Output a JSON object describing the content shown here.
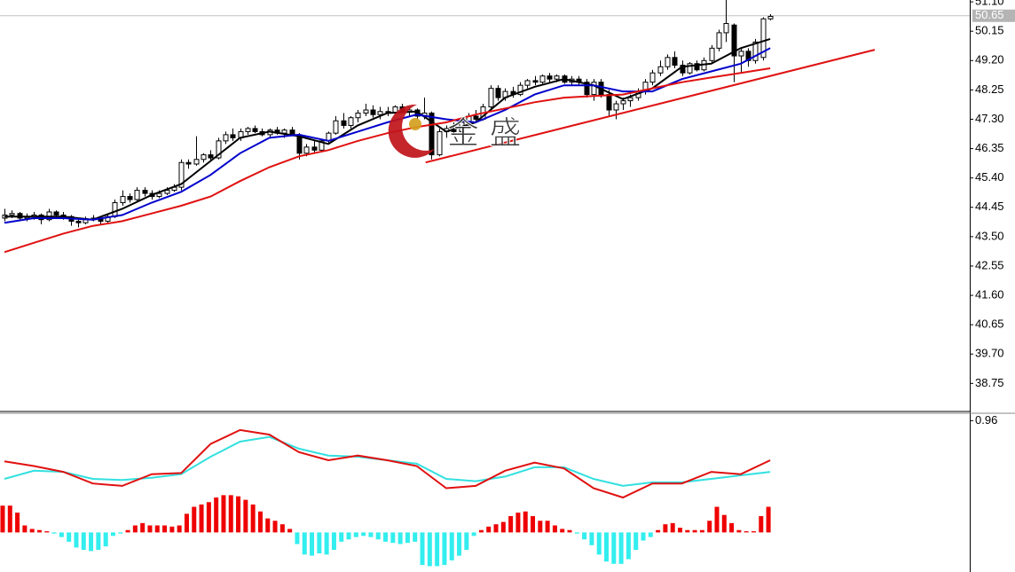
{
  "watermark": "金 盛",
  "chart_data": [
    {
      "type": "candlestick",
      "ohlc": [
        [
          44.1,
          44.4,
          44.0,
          44.2
        ],
        [
          44.2,
          44.35,
          44.1,
          44.25
        ],
        [
          44.25,
          44.3,
          44.0,
          44.1
        ],
        [
          44.1,
          44.25,
          44.0,
          44.15
        ],
        [
          44.15,
          44.3,
          44.05,
          44.2
        ],
        [
          44.2,
          44.25,
          43.9,
          44.05
        ],
        [
          44.05,
          44.4,
          44.0,
          44.3
        ],
        [
          44.3,
          44.35,
          44.1,
          44.2
        ],
        [
          44.2,
          44.3,
          44.05,
          44.15
        ],
        [
          44.15,
          44.2,
          43.85,
          44.0
        ],
        [
          44.0,
          44.1,
          43.8,
          43.95
        ],
        [
          43.95,
          44.15,
          43.9,
          44.05
        ],
        [
          44.05,
          44.2,
          44.0,
          44.1
        ],
        [
          44.1,
          44.15,
          43.9,
          44.0
        ],
        [
          44.0,
          44.25,
          43.95,
          44.15
        ],
        [
          44.15,
          44.7,
          44.1,
          44.6
        ],
        [
          44.6,
          45.0,
          44.5,
          44.8
        ],
        [
          44.8,
          44.9,
          44.6,
          44.7
        ],
        [
          44.7,
          45.1,
          44.65,
          45.0
        ],
        [
          45.0,
          45.1,
          44.8,
          44.9
        ],
        [
          44.9,
          45.0,
          44.7,
          44.8
        ],
        [
          44.8,
          45.0,
          44.75,
          44.9
        ],
        [
          44.9,
          45.1,
          44.85,
          45.0
        ],
        [
          45.0,
          45.2,
          44.95,
          45.1
        ],
        [
          45.1,
          46.0,
          45.0,
          45.9
        ],
        [
          45.9,
          46.0,
          45.7,
          45.85
        ],
        [
          45.85,
          46.75,
          45.8,
          46.0
        ],
        [
          46.0,
          46.2,
          45.9,
          46.15
        ],
        [
          46.15,
          46.3,
          45.95,
          46.05
        ],
        [
          46.05,
          46.7,
          46.0,
          46.6
        ],
        [
          46.6,
          46.9,
          46.5,
          46.8
        ],
        [
          46.8,
          47.0,
          46.6,
          46.7
        ],
        [
          46.7,
          47.0,
          46.6,
          46.9
        ],
        [
          46.9,
          47.05,
          46.8,
          47.0
        ],
        [
          47.0,
          47.1,
          46.85,
          46.9
        ],
        [
          46.9,
          47.0,
          46.75,
          46.8
        ],
        [
          46.8,
          47.0,
          46.7,
          46.95
        ],
        [
          46.95,
          47.05,
          46.8,
          46.85
        ],
        [
          46.85,
          47.0,
          46.7,
          46.95
        ],
        [
          46.95,
          47.05,
          46.75,
          46.8
        ],
        [
          46.8,
          46.85,
          46.0,
          46.2
        ],
        [
          46.2,
          46.5,
          46.1,
          46.4
        ],
        [
          46.4,
          46.6,
          46.2,
          46.3
        ],
        [
          46.3,
          46.65,
          46.25,
          46.6
        ],
        [
          46.6,
          46.9,
          46.5,
          46.85
        ],
        [
          46.85,
          47.4,
          46.8,
          47.25
        ],
        [
          47.25,
          47.5,
          47.0,
          47.1
        ],
        [
          47.1,
          47.4,
          47.0,
          47.35
        ],
        [
          47.35,
          47.6,
          47.2,
          47.5
        ],
        [
          47.5,
          47.8,
          47.4,
          47.6
        ],
        [
          47.6,
          47.75,
          47.35,
          47.45
        ],
        [
          47.45,
          47.7,
          47.3,
          47.55
        ],
        [
          47.55,
          47.7,
          47.4,
          47.5
        ],
        [
          47.5,
          47.75,
          47.45,
          47.7
        ],
        [
          47.7,
          47.8,
          47.5,
          47.55
        ],
        [
          47.55,
          47.7,
          47.4,
          47.6
        ],
        [
          47.6,
          47.65,
          47.3,
          47.4
        ],
        [
          47.4,
          48.0,
          47.3,
          47.5
        ],
        [
          47.5,
          47.55,
          46.0,
          46.15
        ],
        [
          46.15,
          47.0,
          46.1,
          46.9
        ],
        [
          46.9,
          47.1,
          46.7,
          47.0
        ],
        [
          47.0,
          47.2,
          46.8,
          46.9
        ],
        [
          46.9,
          47.3,
          46.85,
          47.2
        ],
        [
          47.2,
          47.5,
          47.0,
          47.4
        ],
        [
          47.4,
          47.6,
          47.2,
          47.3
        ],
        [
          47.3,
          47.8,
          47.25,
          47.7
        ],
        [
          47.7,
          48.4,
          47.6,
          48.3
        ],
        [
          48.3,
          48.4,
          47.9,
          48.0
        ],
        [
          48.0,
          48.3,
          47.9,
          48.2
        ],
        [
          48.2,
          48.35,
          48.0,
          48.1
        ],
        [
          48.1,
          48.5,
          48.05,
          48.4
        ],
        [
          48.4,
          48.6,
          48.3,
          48.55
        ],
        [
          48.55,
          48.7,
          48.4,
          48.5
        ],
        [
          48.5,
          48.75,
          48.45,
          48.7
        ],
        [
          48.7,
          48.8,
          48.5,
          48.6
        ],
        [
          48.6,
          48.75,
          48.5,
          48.7
        ],
        [
          48.7,
          48.75,
          48.45,
          48.5
        ],
        [
          48.5,
          48.7,
          48.4,
          48.6
        ],
        [
          48.6,
          48.7,
          48.4,
          48.5
        ],
        [
          48.5,
          48.6,
          48.0,
          48.1
        ],
        [
          48.1,
          48.6,
          47.9,
          48.5
        ],
        [
          48.5,
          48.6,
          48.0,
          48.1
        ],
        [
          48.1,
          48.25,
          47.4,
          47.6
        ],
        [
          47.6,
          47.9,
          47.3,
          47.8
        ],
        [
          47.8,
          48.0,
          47.6,
          47.9
        ],
        [
          47.9,
          48.1,
          47.7,
          48.0
        ],
        [
          48.0,
          48.3,
          47.9,
          48.2
        ],
        [
          48.2,
          48.6,
          48.1,
          48.5
        ],
        [
          48.5,
          48.9,
          48.4,
          48.8
        ],
        [
          48.8,
          49.2,
          48.7,
          49.0
        ],
        [
          49.0,
          49.4,
          48.9,
          49.3
        ],
        [
          49.3,
          49.5,
          48.95,
          49.05
        ],
        [
          49.05,
          49.2,
          48.7,
          48.8
        ],
        [
          48.8,
          49.15,
          48.75,
          49.1
        ],
        [
          49.1,
          49.2,
          48.85,
          48.9
        ],
        [
          48.9,
          49.3,
          48.85,
          49.2
        ],
        [
          49.2,
          49.7,
          49.1,
          49.6
        ],
        [
          49.6,
          50.2,
          49.5,
          50.1
        ],
        [
          50.1,
          51.16,
          49.8,
          50.4
        ],
        [
          50.35,
          50.4,
          48.5,
          49.35
        ],
        [
          49.35,
          49.6,
          48.8,
          49.5
        ],
        [
          49.5,
          49.6,
          49.0,
          49.2
        ],
        [
          49.2,
          49.9,
          49.1,
          49.8
        ],
        [
          49.3,
          50.6,
          49.2,
          50.55
        ],
        [
          50.55,
          50.7,
          50.5,
          50.63
        ]
      ],
      "up_color": "#ffffff",
      "down_color": "#000000",
      "series": [
        {
          "color": "#000000",
          "x": [
            0,
            4,
            8,
            12,
            16,
            20,
            24,
            28,
            32,
            36,
            40,
            44,
            48,
            52,
            56,
            60,
            64,
            68,
            72,
            76,
            80,
            84,
            88,
            92,
            96,
            100,
            104
          ],
          "values": [
            44.15,
            44.15,
            44.15,
            44.05,
            44.4,
            44.85,
            45.2,
            45.95,
            46.7,
            46.9,
            46.75,
            46.5,
            47.1,
            47.5,
            47.55,
            46.9,
            47.2,
            48.0,
            48.35,
            48.6,
            48.4,
            47.95,
            48.3,
            49.0,
            49.1,
            49.6,
            49.9
          ]
        },
        {
          "color": "#0000cc",
          "x": [
            0,
            4,
            8,
            12,
            16,
            20,
            24,
            28,
            32,
            36,
            40,
            44,
            48,
            52,
            56,
            60,
            64,
            68,
            72,
            76,
            80,
            84,
            88,
            92,
            96,
            100,
            104
          ],
          "values": [
            43.95,
            44.1,
            44.1,
            44.05,
            44.2,
            44.6,
            44.95,
            45.5,
            46.2,
            46.7,
            46.8,
            46.6,
            46.9,
            47.2,
            47.45,
            47.3,
            47.2,
            47.6,
            48.1,
            48.4,
            48.4,
            48.2,
            48.2,
            48.6,
            48.85,
            49.1,
            49.6
          ]
        },
        {
          "color": "#e01010",
          "x": [
            0,
            4,
            8,
            12,
            16,
            20,
            24,
            28,
            32,
            36,
            40,
            44,
            48,
            52,
            56,
            60,
            64,
            68,
            72,
            76,
            80,
            84,
            88,
            92,
            96,
            100,
            104
          ],
          "values": [
            43.0,
            43.3,
            43.6,
            43.85,
            44.0,
            44.25,
            44.5,
            44.8,
            45.3,
            45.75,
            46.1,
            46.3,
            46.6,
            46.85,
            47.05,
            47.2,
            47.45,
            47.65,
            47.85,
            48.0,
            48.05,
            48.1,
            48.3,
            48.5,
            48.65,
            48.8,
            48.95
          ]
        }
      ],
      "trendline": {
        "color": "#e01010",
        "x": [
          57.2,
          118.2
        ],
        "values": [
          45.9,
          49.55
        ]
      },
      "last_price": 50.65,
      "xlim": [
        -0.6,
        131.1
      ],
      "ylim": [
        37.87,
        51.16
      ],
      "yticks": [
        {
          "value": 51.1,
          "label": "51.10"
        },
        50.15,
        {
          "value": 49.2,
          "label": "49.20"
        },
        48.25,
        {
          "value": 47.3,
          "label": "47.30"
        },
        46.35,
        {
          "value": 45.4,
          "label": "45.40"
        },
        44.45,
        {
          "value": 43.5,
          "label": "43.50"
        },
        42.55,
        {
          "value": 41.6,
          "label": "41.60"
        },
        40.65,
        {
          "value": 39.7,
          "label": "39.70"
        },
        38.75
      ]
    },
    {
      "type": "macd",
      "histogram": [
        0.23,
        0.23,
        0.17,
        0.06,
        0.03,
        0.02,
        0.01,
        -0.01,
        -0.04,
        -0.08,
        -0.13,
        -0.15,
        -0.16,
        -0.15,
        -0.12,
        -0.03,
        -0.01,
        0.02,
        0.06,
        0.08,
        0.06,
        0.06,
        0.06,
        0.05,
        0.06,
        0.16,
        0.22,
        0.24,
        0.26,
        0.3,
        0.32,
        0.32,
        0.31,
        0.28,
        0.24,
        0.18,
        0.12,
        0.1,
        0.07,
        0.03,
        -0.1,
        -0.19,
        -0.2,
        -0.18,
        -0.19,
        -0.15,
        -0.08,
        -0.06,
        -0.04,
        -0.03,
        -0.04,
        -0.06,
        -0.08,
        -0.09,
        -0.1,
        -0.09,
        -0.08,
        -0.28,
        -0.29,
        -0.29,
        -0.28,
        -0.24,
        -0.2,
        -0.15,
        -0.03,
        0.02,
        0.05,
        0.07,
        0.09,
        0.14,
        0.17,
        0.18,
        0.14,
        0.1,
        0.1,
        0.06,
        0.03,
        0.02,
        -0.01,
        -0.06,
        -0.11,
        -0.19,
        -0.25,
        -0.27,
        -0.27,
        -0.23,
        -0.15,
        -0.07,
        -0.04,
        0.02,
        0.07,
        0.08,
        0.04,
        0.02,
        0.02,
        0.02,
        0.1,
        0.22,
        0.15,
        0.08,
        0.02,
        0.01,
        0.01,
        0.14,
        0.22
      ],
      "positive_color": "#ee0000",
      "negative_color": "#33eeee",
      "series": [
        {
          "color": "#33e0e0",
          "x": [
            0,
            4,
            8,
            12,
            16,
            20,
            24,
            28,
            32,
            36,
            40,
            44,
            48,
            52,
            56,
            60,
            64,
            68,
            72,
            76,
            80,
            84,
            88,
            92,
            96,
            100,
            104
          ],
          "values": [
            0.46,
            0.53,
            0.52,
            0.46,
            0.45,
            0.47,
            0.5,
            0.65,
            0.78,
            0.82,
            0.72,
            0.66,
            0.65,
            0.62,
            0.59,
            0.46,
            0.44,
            0.48,
            0.56,
            0.56,
            0.46,
            0.4,
            0.43,
            0.43,
            0.46,
            0.49,
            0.52
          ]
        },
        {
          "color": "#e01010",
          "x": [
            0,
            4,
            8,
            12,
            16,
            20,
            24,
            28,
            32,
            36,
            40,
            44,
            48,
            52,
            56,
            60,
            64,
            68,
            72,
            76,
            80,
            84,
            88,
            92,
            96,
            100,
            104
          ],
          "values": [
            0.61,
            0.57,
            0.52,
            0.42,
            0.4,
            0.5,
            0.51,
            0.76,
            0.88,
            0.84,
            0.69,
            0.62,
            0.66,
            0.62,
            0.57,
            0.38,
            0.4,
            0.53,
            0.6,
            0.55,
            0.38,
            0.3,
            0.42,
            0.42,
            0.52,
            0.5,
            0.62
          ]
        }
      ],
      "xlim": [
        -0.6,
        131.1
      ],
      "ylim": [
        -0.34,
        1.016
      ],
      "yticks": [
        0.96
      ]
    }
  ]
}
